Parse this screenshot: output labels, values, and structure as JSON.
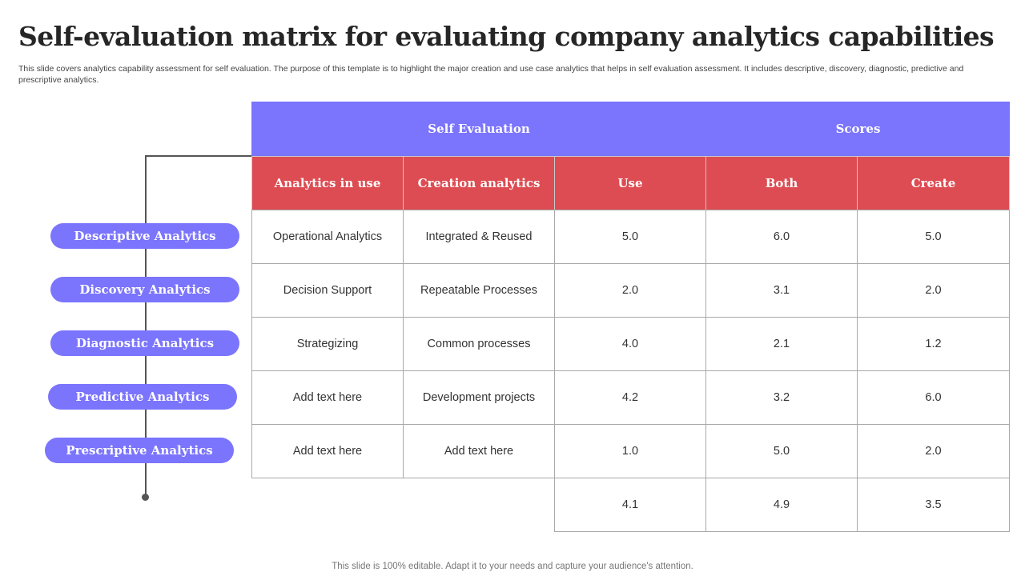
{
  "title": "Self-evaluation matrix for evaluating company analytics capabilities",
  "subtitle": "This slide covers analytics capability assessment for self evaluation. The purpose of this template is to highlight the major creation and use case analytics that helps in self evaluation assessment. It includes descriptive, discovery, diagnostic, predictive and prescriptive analytics.",
  "categories": [
    "Descriptive Analytics",
    "Discovery Analytics",
    "Diagnostic Analytics",
    "Predictive Analytics",
    "Prescriptive Analytics"
  ],
  "table": {
    "group_headers": [
      "Self Evaluation",
      "Scores"
    ],
    "columns": [
      "Analytics in use",
      "Creation analytics",
      "Use",
      "Both",
      "Create"
    ],
    "rows": [
      [
        "Operational Analytics",
        "Integrated & Reused",
        "5.0",
        "6.0",
        "5.0"
      ],
      [
        "Decision Support",
        "Repeatable Processes",
        "2.0",
        "3.1",
        "2.0"
      ],
      [
        "Strategizing",
        "Common processes",
        "4.0",
        "2.1",
        "1.2"
      ],
      [
        "Add text here",
        "Development projects",
        "4.2",
        "3.2",
        "6.0"
      ],
      [
        "Add text here",
        "Add text here",
        "1.0",
        "5.0",
        "2.0"
      ]
    ],
    "totals": [
      "4.1",
      "4.9",
      "3.5"
    ]
  },
  "colors": {
    "accent_blue": "#7b74fc",
    "accent_red": "#dd4c52"
  },
  "footer": "This slide is 100% editable. Adapt it to your needs and capture your audience's attention."
}
